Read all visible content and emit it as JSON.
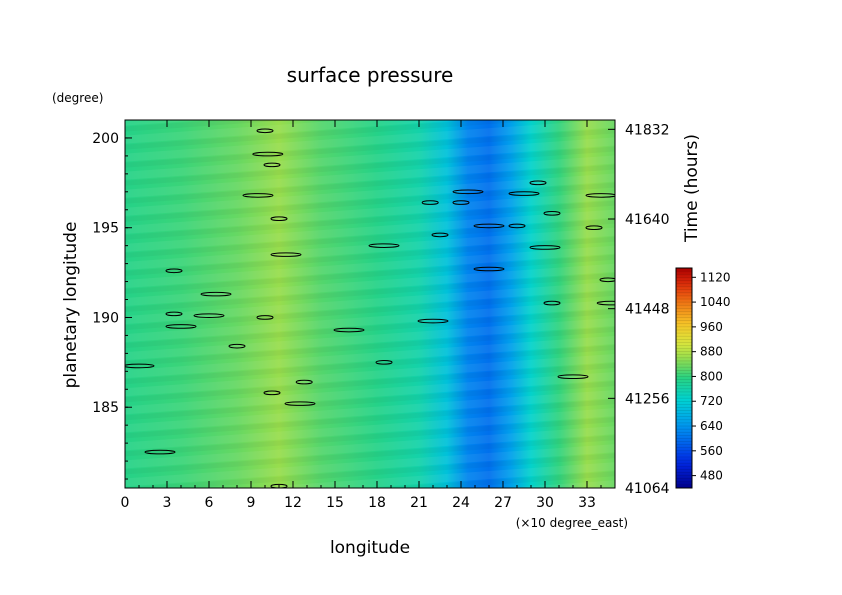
{
  "chart_data": {
    "type": "heatmap",
    "title": "surface pressure",
    "xlabel": "longitude",
    "xunit": "(×10 degree_east)",
    "ylabel": "planetary longitude",
    "yunit": "(degree)",
    "y2label": "Time (hours)",
    "xlim": [
      0,
      35
    ],
    "ylim": [
      180.5,
      201
    ],
    "y2lim": [
      41064,
      41852
    ],
    "x_ticks": [
      "0",
      "3",
      "6",
      "9",
      "12",
      "15",
      "18",
      "21",
      "24",
      "27",
      "30",
      "33"
    ],
    "y_ticks": [
      "185",
      "190",
      "195",
      "200"
    ],
    "y2_ticks": [
      "41064",
      "41256",
      "41448",
      "41640",
      "41832"
    ],
    "colorbar": {
      "range": [
        440,
        1150
      ],
      "ticks": [
        "480",
        "560",
        "640",
        "720",
        "800",
        "880",
        "960",
        "1040",
        "1120"
      ]
    },
    "x_profile": [
      {
        "x": 0,
        "value": 790
      },
      {
        "x": 4,
        "value": 805
      },
      {
        "x": 8,
        "value": 830
      },
      {
        "x": 11,
        "value": 860
      },
      {
        "x": 14,
        "value": 820
      },
      {
        "x": 18,
        "value": 790
      },
      {
        "x": 21,
        "value": 760
      },
      {
        "x": 23,
        "value": 700
      },
      {
        "x": 24.5,
        "value": 620
      },
      {
        "x": 26,
        "value": 600
      },
      {
        "x": 27.5,
        "value": 650
      },
      {
        "x": 29,
        "value": 730
      },
      {
        "x": 31,
        "value": 800
      },
      {
        "x": 33,
        "value": 860
      },
      {
        "x": 35,
        "value": 830
      }
    ],
    "contours": [
      {
        "x": 10.0,
        "y": 200.4
      },
      {
        "x": 10.2,
        "y": 199.1
      },
      {
        "x": 10.5,
        "y": 198.5
      },
      {
        "x": 9.5,
        "y": 196.8
      },
      {
        "x": 11.0,
        "y": 195.5
      },
      {
        "x": 11.5,
        "y": 193.5
      },
      {
        "x": 3.5,
        "y": 192.6
      },
      {
        "x": 6.5,
        "y": 191.3
      },
      {
        "x": 3.5,
        "y": 190.2
      },
      {
        "x": 6.0,
        "y": 190.1
      },
      {
        "x": 10.0,
        "y": 190.0
      },
      {
        "x": 4.0,
        "y": 189.5
      },
      {
        "x": 8.0,
        "y": 188.4
      },
      {
        "x": 1.0,
        "y": 187.3
      },
      {
        "x": 10.5,
        "y": 185.8
      },
      {
        "x": 12.5,
        "y": 185.2
      },
      {
        "x": 12.8,
        "y": 186.4
      },
      {
        "x": 2.5,
        "y": 182.5
      },
      {
        "x": 11.0,
        "y": 180.6
      },
      {
        "x": 16.0,
        "y": 189.3
      },
      {
        "x": 18.5,
        "y": 187.5
      },
      {
        "x": 18.5,
        "y": 194.0
      },
      {
        "x": 22.5,
        "y": 194.6
      },
      {
        "x": 22.0,
        "y": 189.8
      },
      {
        "x": 21.8,
        "y": 196.4
      },
      {
        "x": 24.5,
        "y": 197.0
      },
      {
        "x": 24.0,
        "y": 196.4
      },
      {
        "x": 26.0,
        "y": 195.1
      },
      {
        "x": 28.0,
        "y": 195.1
      },
      {
        "x": 26.0,
        "y": 192.7
      },
      {
        "x": 29.5,
        "y": 197.5
      },
      {
        "x": 28.5,
        "y": 196.9
      },
      {
        "x": 30.5,
        "y": 195.8
      },
      {
        "x": 30.0,
        "y": 193.9
      },
      {
        "x": 30.5,
        "y": 190.8
      },
      {
        "x": 32.0,
        "y": 186.7
      },
      {
        "x": 33.5,
        "y": 195.0
      },
      {
        "x": 34.0,
        "y": 196.8
      },
      {
        "x": 34.5,
        "y": 192.1
      },
      {
        "x": 34.8,
        "y": 190.8
      }
    ]
  }
}
